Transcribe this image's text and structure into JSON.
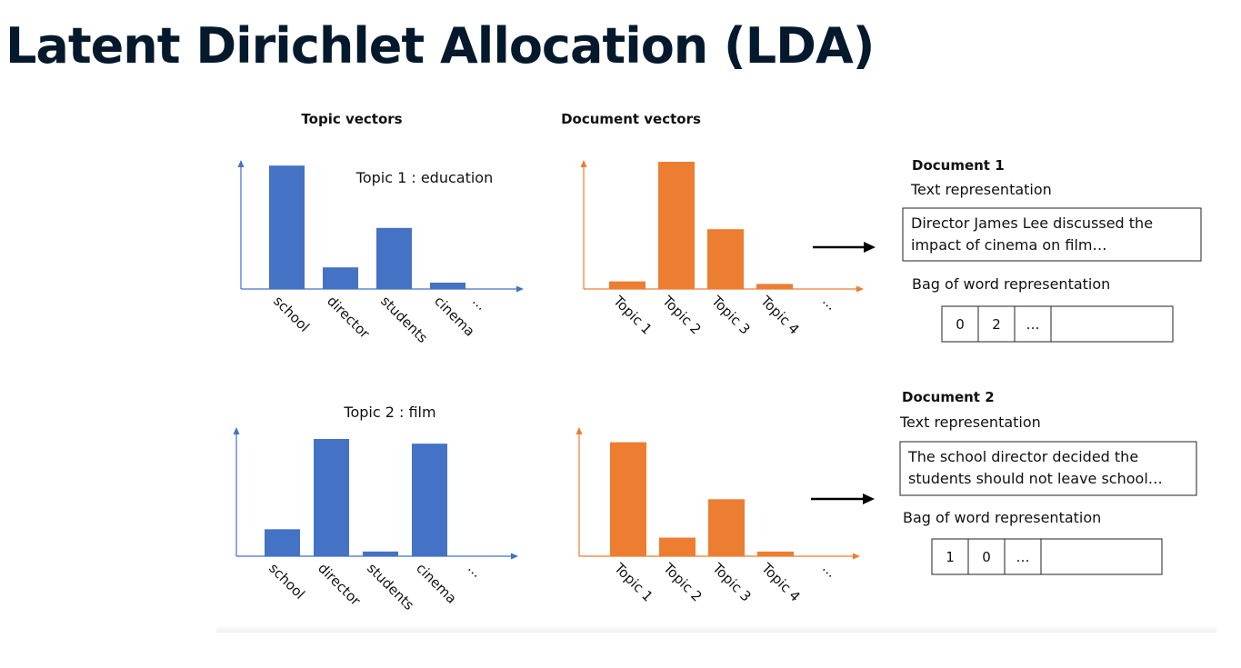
{
  "title": "Latent Dirichlet Allocation (LDA)",
  "colors": {
    "topic_bar": "#4472c4",
    "document_bar": "#ed7d31",
    "title": "#05192d"
  },
  "headers": {
    "topic_vectors": "Topic vectors",
    "document_vectors": "Document vectors"
  },
  "chart_data": [
    {
      "type": "bar",
      "title": "Topic 1 : education",
      "categories": [
        "school",
        "director",
        "students",
        "cinema",
        "..."
      ],
      "values": [
        0.97,
        0.17,
        0.48,
        0.05,
        0
      ]
    },
    {
      "type": "bar",
      "title": "",
      "categories": [
        "Topic 1",
        "Topic 2",
        "Topic 3",
        "Topic 4",
        "..."
      ],
      "values": [
        0.06,
        1.0,
        0.47,
        0.04,
        0
      ]
    },
    {
      "type": "bar",
      "title": "Topic 2 : film",
      "categories": [
        "school",
        "director",
        "students",
        "cinema",
        "..."
      ],
      "values": [
        0.23,
        1.0,
        0.04,
        0.96,
        0
      ]
    },
    {
      "type": "bar",
      "title": "",
      "categories": [
        "Topic 1",
        "Topic 2",
        "Topic 3",
        "Topic 4",
        "..."
      ],
      "values": [
        0.98,
        0.16,
        0.49,
        0.04,
        0
      ]
    }
  ],
  "documents": [
    {
      "heading": "Document 1",
      "text_label": "Text representation",
      "text_lines": [
        "Director James Lee discussed the",
        "impact of cinema on film…"
      ],
      "bow_label": "Bag of word representation",
      "bow_cells": [
        "0",
        "2",
        "…",
        ""
      ]
    },
    {
      "heading": "Document 2",
      "text_label": "Text representation",
      "text_lines": [
        "The school director decided the",
        "students should not leave school…"
      ],
      "bow_label": "Bag of word representation",
      "bow_cells": [
        "1",
        "0",
        "…",
        ""
      ]
    }
  ]
}
